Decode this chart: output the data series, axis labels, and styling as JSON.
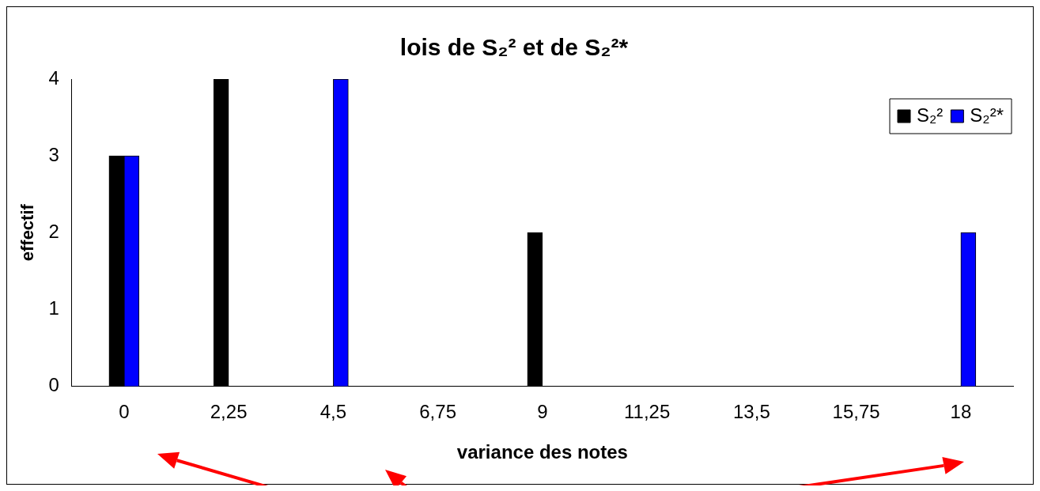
{
  "chart_data": {
    "type": "bar",
    "title": "lois de S₂² et de S₂²*",
    "xlabel": "variance des notes",
    "ylabel": "effectif",
    "categories": [
      "0",
      "2,25",
      "4,5",
      "6,75",
      "9",
      "11,25",
      "13,5",
      "15,75",
      "18"
    ],
    "series": [
      {
        "name": "S₂²",
        "color": "#000000",
        "values": [
          3,
          4,
          0,
          0,
          2,
          0,
          0,
          0,
          0
        ]
      },
      {
        "name": "S₂²*",
        "color": "#0000ff",
        "values": [
          3,
          0,
          4,
          0,
          0,
          0,
          0,
          0,
          2
        ]
      }
    ],
    "ylim": [
      0,
      4
    ],
    "yticks": [
      0,
      1,
      2,
      3,
      4
    ],
    "grid": false,
    "legend": "top right"
  }
}
